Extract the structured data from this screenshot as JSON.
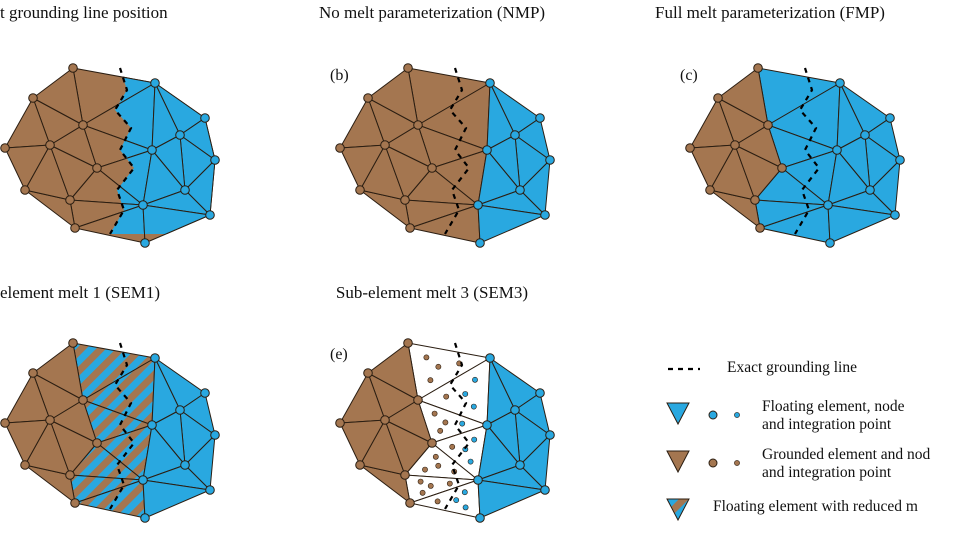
{
  "panels": [
    {
      "title": "t grounding line position"
    },
    {
      "title": "No melt parameterization (NMP)",
      "label": "(b)"
    },
    {
      "title": "Full melt parameterization (FMP)",
      "label": "(c)"
    },
    {
      "title": "element melt 1 (SEM1)"
    },
    {
      "title": "Sub-element melt 3 (SEM3)",
      "label": "(e)"
    }
  ],
  "legend": [
    {
      "lines": [
        "Exact grounding line"
      ]
    },
    {
      "lines": [
        "Floating element, node",
        "and integration point"
      ]
    },
    {
      "lines": [
        "Grounded element and nod",
        "and integration point"
      ]
    },
    {
      "lines": [
        "Floating element with reduced m"
      ]
    }
  ]
}
